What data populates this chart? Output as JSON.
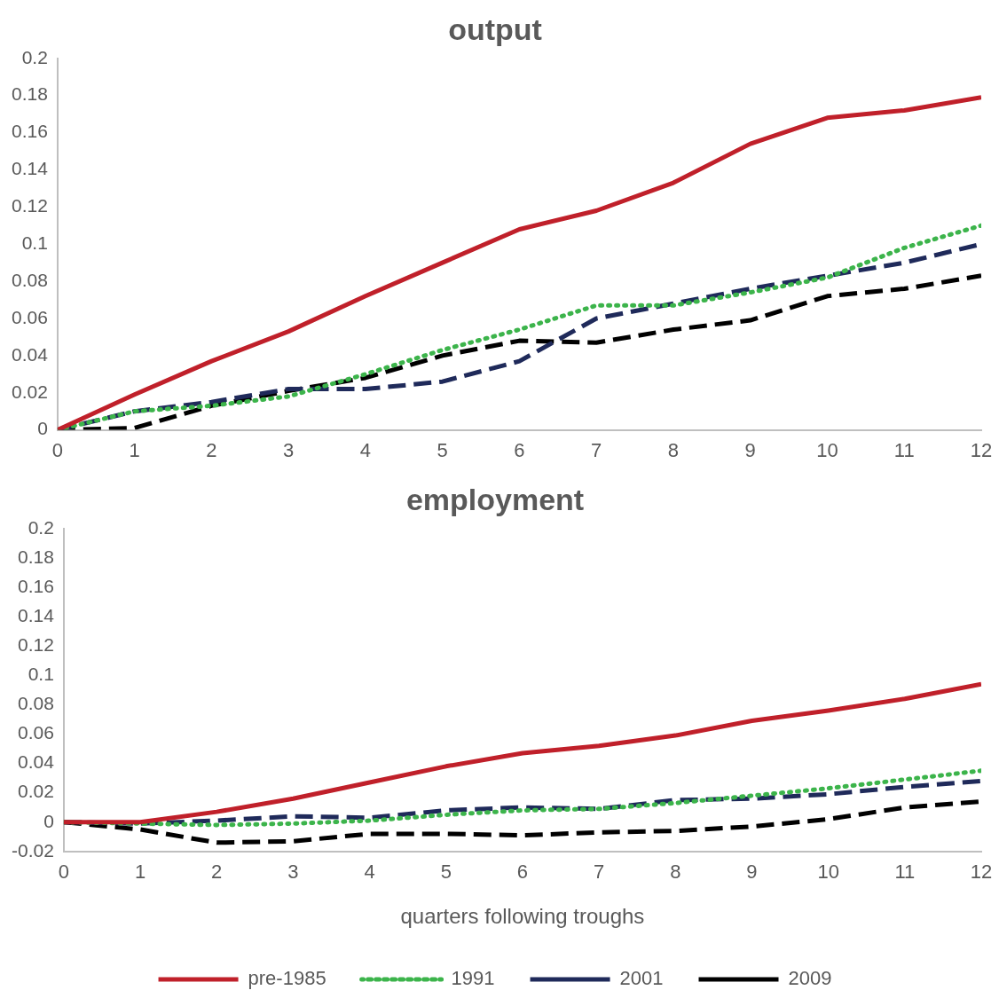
{
  "chart_data": [
    {
      "type": "line",
      "title": "output",
      "x": [
        0,
        1,
        2,
        3,
        4,
        5,
        6,
        7,
        8,
        9,
        10,
        11,
        12
      ],
      "xlim": [
        0,
        12
      ],
      "xticks": [
        0,
        1,
        2,
        3,
        4,
        5,
        6,
        7,
        8,
        9,
        10,
        11,
        12
      ],
      "ylim": [
        0,
        0.2
      ],
      "yticks": [
        0,
        0.02,
        0.04,
        0.06,
        0.08,
        0.1,
        0.12,
        0.14,
        0.16,
        0.18,
        0.2
      ],
      "grid": false,
      "series": [
        {
          "color": "#c0202a",
          "line_style": "solid",
          "values": [
            0,
            0.019,
            0.037,
            0.053,
            0.072,
            0.09,
            0.108,
            0.118,
            0.133,
            0.154,
            0.168,
            0.172,
            0.179
          ]
        },
        {
          "color": "#3cb44b",
          "line_style": "dotted",
          "values": [
            0,
            0.01,
            0.013,
            0.018,
            0.03,
            0.043,
            0.054,
            0.067,
            0.067,
            0.074,
            0.082,
            0.098,
            0.11
          ]
        },
        {
          "color": "#1f2a5a",
          "line_style": "dashed",
          "values": [
            0,
            0.01,
            0.015,
            0.022,
            0.022,
            0.026,
            0.037,
            0.06,
            0.068,
            0.076,
            0.083,
            0.09,
            0.1
          ]
        },
        {
          "color": "#000000",
          "line_style": "dashed",
          "values": [
            0,
            0.001,
            0.013,
            0.021,
            0.028,
            0.04,
            0.048,
            0.047,
            0.054,
            0.059,
            0.072,
            0.076,
            0.083
          ]
        }
      ]
    },
    {
      "type": "line",
      "title": "employment",
      "xlabel": "quarters following troughs",
      "legend": "bottom",
      "x": [
        0,
        1,
        2,
        3,
        4,
        5,
        6,
        7,
        8,
        9,
        10,
        11,
        12
      ],
      "xlim": [
        0,
        12
      ],
      "xticks": [
        0,
        1,
        2,
        3,
        4,
        5,
        6,
        7,
        8,
        9,
        10,
        11,
        12
      ],
      "ylim": [
        -0.02,
        0.2
      ],
      "yticks": [
        -0.02,
        0,
        0.02,
        0.04,
        0.06,
        0.08,
        0.1,
        0.12,
        0.14,
        0.16,
        0.18,
        0.2
      ],
      "grid": false,
      "series": [
        {
          "name": "pre-1985",
          "color": "#c0202a",
          "line_style": "solid",
          "values": [
            0,
            0,
            0.007,
            0.016,
            0.027,
            0.038,
            0.047,
            0.052,
            0.059,
            0.069,
            0.076,
            0.084,
            0.094
          ]
        },
        {
          "name": "1991",
          "color": "#3cb44b",
          "line_style": "dotted",
          "values": [
            0,
            -0.001,
            -0.002,
            -0.001,
            0.001,
            0.005,
            0.008,
            0.009,
            0.013,
            0.018,
            0.023,
            0.029,
            0.035
          ]
        },
        {
          "name": "2001",
          "color": "#1f2a5a",
          "line_style": "dashed",
          "values": [
            0,
            -0.001,
            0.001,
            0.004,
            0.003,
            0.008,
            0.01,
            0.009,
            0.015,
            0.016,
            0.019,
            0.024,
            0.028
          ]
        },
        {
          "name": "2009",
          "color": "#000000",
          "line_style": "dashed",
          "values": [
            0,
            -0.005,
            -0.014,
            -0.013,
            -0.008,
            -0.008,
            -0.009,
            -0.007,
            -0.006,
            -0.003,
            0.002,
            0.01,
            0.014
          ]
        }
      ]
    }
  ]
}
